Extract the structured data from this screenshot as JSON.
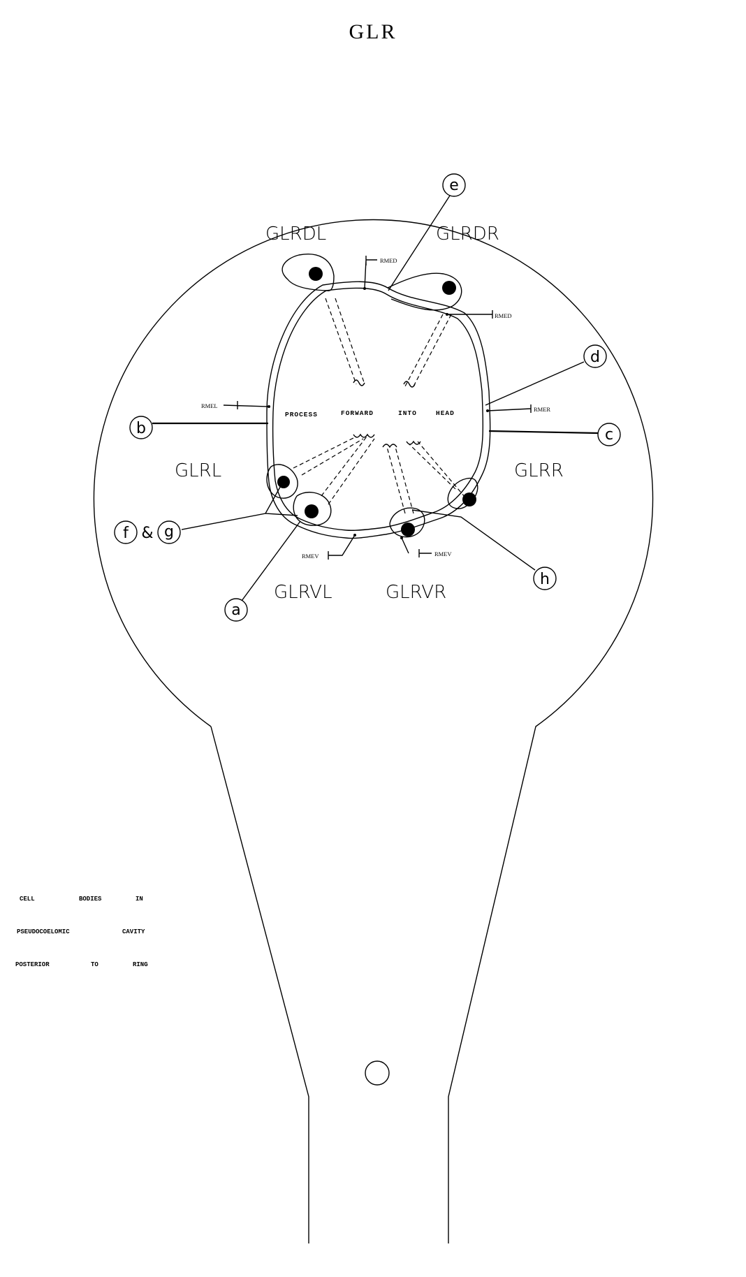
{
  "title": "GLR",
  "cells": {
    "glrdl": "GLRDL",
    "glrdr": "GLRDR",
    "glrl": "GLRL",
    "glrr": "GLRR",
    "glrvl": "GLRVL",
    "glrvr": "GLRVR"
  },
  "process_text": {
    "w1": "PROCESS",
    "w2": "FORWARD",
    "w3": "INTO",
    "w4": "HEAD"
  },
  "rme": {
    "rmed_left": "RMED",
    "rmed_right": "RMED",
    "rmel": "RMEL",
    "rmer": "RMER",
    "rmev_left": "RMEV",
    "rmev_right": "RMEV"
  },
  "callouts": {
    "a": "a",
    "b": "b",
    "c": "c",
    "d": "d",
    "e": "e",
    "f": "f",
    "amp": "&",
    "g": "g",
    "h": "h"
  },
  "caption": {
    "line1": [
      "CELL",
      "BODIES",
      "IN"
    ],
    "line2": [
      "PSEUDOCOELOMIC",
      "CAVITY"
    ],
    "line3": [
      "POSTERIOR",
      "TO",
      "RING"
    ]
  }
}
